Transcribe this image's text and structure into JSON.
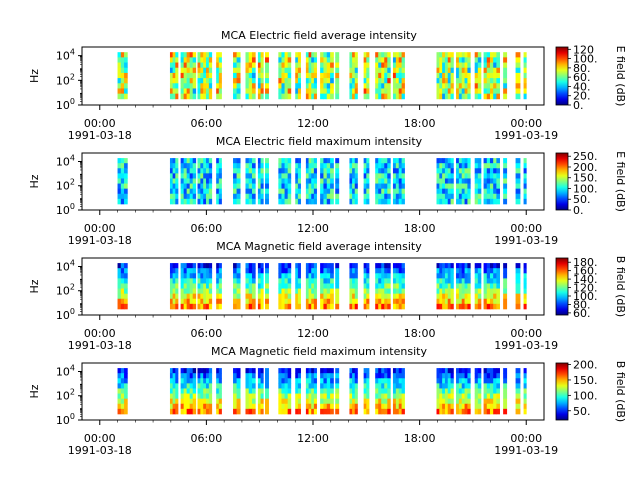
{
  "chart_data": [
    {
      "type": "heatmap",
      "title": "MCA  Electric field average intensity",
      "ylabel": "Hz",
      "colorbar_label": "E field (dB)",
      "colorbar_ticks": [
        "0.",
        "20.",
        "40.",
        "60.",
        "80.",
        "100.",
        "120"
      ],
      "clim": [
        0,
        125
      ],
      "color_bias": 0.55,
      "intervals": [
        [
          1.0,
          1.55
        ],
        [
          3.95,
          4.4
        ],
        [
          4.55,
          5.4
        ],
        [
          5.5,
          6.3
        ],
        [
          6.55,
          6.85
        ],
        [
          7.5,
          7.9
        ],
        [
          8.2,
          8.75
        ],
        [
          8.9,
          9.2
        ],
        [
          9.3,
          9.5
        ],
        [
          10.05,
          10.75
        ],
        [
          11.0,
          11.3
        ],
        [
          11.6,
          12.2
        ],
        [
          12.4,
          13.15
        ],
        [
          13.25,
          13.45
        ],
        [
          14.05,
          14.5
        ],
        [
          14.85,
          15.15
        ],
        [
          15.5,
          16.35
        ],
        [
          16.5,
          17.15
        ],
        [
          18.95,
          19.9
        ],
        [
          20.05,
          20.85
        ],
        [
          21.1,
          21.45
        ],
        [
          21.6,
          22.5
        ],
        [
          22.7,
          22.9
        ],
        [
          23.4,
          23.65
        ],
        [
          23.85,
          24.0
        ]
      ]
    },
    {
      "type": "heatmap",
      "title": "MCA  Electric field maximum intensity",
      "ylabel": "Hz",
      "colorbar_label": "E field (dB)",
      "colorbar_ticks": [
        "0.",
        "50.",
        "100.",
        "150.",
        "200.",
        "250."
      ],
      "clim": [
        0,
        265
      ],
      "color_bias": 0.35,
      "intervals": [
        [
          1.0,
          1.55
        ],
        [
          3.95,
          4.4
        ],
        [
          4.55,
          5.4
        ],
        [
          5.5,
          6.3
        ],
        [
          6.55,
          6.85
        ],
        [
          7.5,
          7.9
        ],
        [
          8.2,
          8.75
        ],
        [
          8.9,
          9.2
        ],
        [
          9.3,
          9.5
        ],
        [
          10.05,
          10.75
        ],
        [
          11.0,
          11.3
        ],
        [
          11.6,
          12.2
        ],
        [
          12.4,
          13.15
        ],
        [
          13.25,
          13.45
        ],
        [
          14.05,
          14.5
        ],
        [
          14.85,
          15.15
        ],
        [
          15.5,
          16.35
        ],
        [
          16.5,
          17.15
        ],
        [
          18.95,
          19.9
        ],
        [
          20.05,
          20.85
        ],
        [
          21.1,
          21.45
        ],
        [
          21.6,
          22.5
        ],
        [
          22.7,
          22.9
        ],
        [
          23.4,
          23.65
        ],
        [
          23.85,
          24.0
        ]
      ]
    },
    {
      "type": "heatmap",
      "title": "MCA  Magnetic field average intensity",
      "ylabel": "Hz",
      "colorbar_label": "B field (dB)",
      "colorbar_ticks": [
        "60.",
        "80.",
        "100.",
        "120.",
        "140.",
        "160.",
        "180."
      ],
      "clim": [
        55,
        190
      ],
      "color_bias": 0.45,
      "intervals": [
        [
          1.0,
          1.55
        ],
        [
          3.95,
          4.4
        ],
        [
          4.55,
          5.4
        ],
        [
          5.5,
          6.3
        ],
        [
          6.55,
          6.85
        ],
        [
          7.5,
          7.9
        ],
        [
          8.2,
          8.75
        ],
        [
          8.9,
          9.2
        ],
        [
          9.3,
          9.5
        ],
        [
          10.05,
          10.75
        ],
        [
          11.0,
          11.3
        ],
        [
          11.6,
          12.2
        ],
        [
          12.4,
          13.15
        ],
        [
          13.25,
          13.45
        ],
        [
          14.05,
          14.5
        ],
        [
          14.85,
          15.15
        ],
        [
          15.5,
          16.35
        ],
        [
          16.5,
          17.15
        ],
        [
          18.95,
          19.9
        ],
        [
          20.05,
          20.85
        ],
        [
          21.1,
          21.45
        ],
        [
          21.6,
          22.5
        ],
        [
          22.7,
          22.9
        ],
        [
          23.4,
          23.65
        ],
        [
          23.85,
          24.0
        ]
      ]
    },
    {
      "type": "heatmap",
      "title": "MCA  Magnetic field maximum intensity",
      "ylabel": "Hz",
      "colorbar_label": "B field (dB)",
      "colorbar_ticks": [
        "50.",
        "100.",
        "150.",
        "200."
      ],
      "clim": [
        20,
        205
      ],
      "color_bias": 0.5,
      "intervals": [
        [
          1.0,
          1.55
        ],
        [
          3.95,
          4.4
        ],
        [
          4.55,
          5.4
        ],
        [
          5.5,
          6.3
        ],
        [
          6.55,
          6.85
        ],
        [
          7.5,
          7.9
        ],
        [
          8.2,
          8.75
        ],
        [
          8.9,
          9.2
        ],
        [
          9.3,
          9.5
        ],
        [
          10.05,
          10.75
        ],
        [
          11.0,
          11.3
        ],
        [
          11.6,
          12.2
        ],
        [
          12.4,
          13.15
        ],
        [
          13.25,
          13.45
        ],
        [
          14.05,
          14.5
        ],
        [
          14.85,
          15.15
        ],
        [
          15.5,
          16.35
        ],
        [
          16.5,
          17.15
        ],
        [
          18.95,
          19.9
        ],
        [
          20.05,
          20.85
        ],
        [
          21.1,
          21.45
        ],
        [
          21.6,
          22.5
        ],
        [
          22.7,
          22.9
        ],
        [
          23.4,
          23.65
        ],
        [
          23.85,
          24.0
        ]
      ]
    }
  ],
  "x_axis": {
    "ticks": [
      {
        "time": "00:00",
        "date": "1991-03-18",
        "hour": 0
      },
      {
        "time": "06:00",
        "date": "",
        "hour": 6
      },
      {
        "time": "12:00",
        "date": "",
        "hour": 12
      },
      {
        "time": "18:00",
        "date": "",
        "hour": 18
      },
      {
        "time": "00:00",
        "date": "1991-03-19",
        "hour": 24
      }
    ],
    "range_hours": [
      -1,
      25
    ]
  },
  "y_axis": {
    "tick_labels": [
      "10",
      "10",
      "10"
    ],
    "tick_exponents": [
      "0",
      "2",
      "4"
    ],
    "range_log10": [
      0,
      4.7
    ]
  }
}
